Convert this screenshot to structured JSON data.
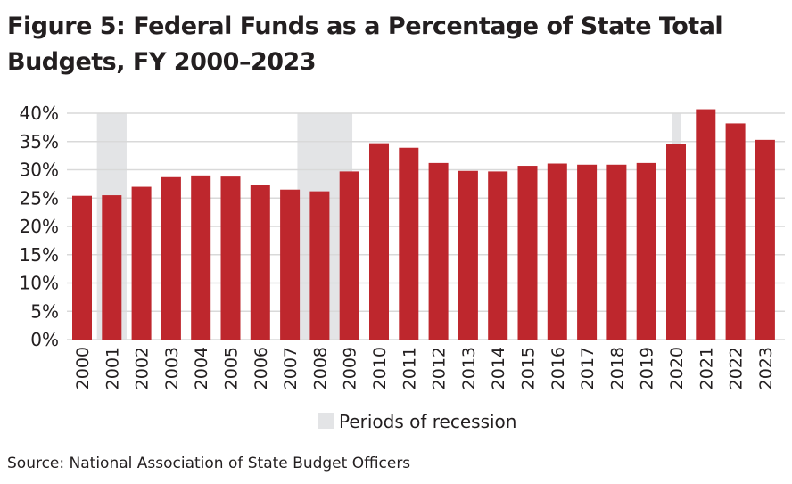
{
  "chart_data": {
    "type": "bar",
    "title": "Figure 5: Federal Funds as a Percentage of State Total Budgets, FY 2000–2023",
    "categories": [
      "2000",
      "2001",
      "2002",
      "2003",
      "2004",
      "2005",
      "2006",
      "2007",
      "2008",
      "2009",
      "2010",
      "2011",
      "2012",
      "2013",
      "2014",
      "2015",
      "2016",
      "2017",
      "2018",
      "2019",
      "2020",
      "2021",
      "2022",
      "2023"
    ],
    "values": [
      25.4,
      25.5,
      27.0,
      28.7,
      29.0,
      28.8,
      27.4,
      26.5,
      26.2,
      29.7,
      34.7,
      33.9,
      31.2,
      29.8,
      29.7,
      30.7,
      31.1,
      30.9,
      30.9,
      31.2,
      34.6,
      40.7,
      38.2,
      35.3
    ],
    "ylim": [
      0,
      40
    ],
    "yticks": [
      0,
      5,
      10,
      15,
      20,
      25,
      30,
      35,
      40
    ],
    "ytick_labels": [
      "0%",
      "5%",
      "10%",
      "15%",
      "20%",
      "25%",
      "30%",
      "35%",
      "40%"
    ],
    "grid": true,
    "recession_periods": [
      [
        2000.5,
        2001.5
      ],
      [
        2007.25,
        2009.1
      ],
      [
        2019.85,
        2020.15
      ]
    ],
    "legend": {
      "label": "Periods of recession",
      "position": "bottom"
    },
    "colors": {
      "bar": "#be272d",
      "recession": "#e3e4e6",
      "grid": "#d9d9d9"
    }
  },
  "source": "Source: National Association of State Budget Officers"
}
